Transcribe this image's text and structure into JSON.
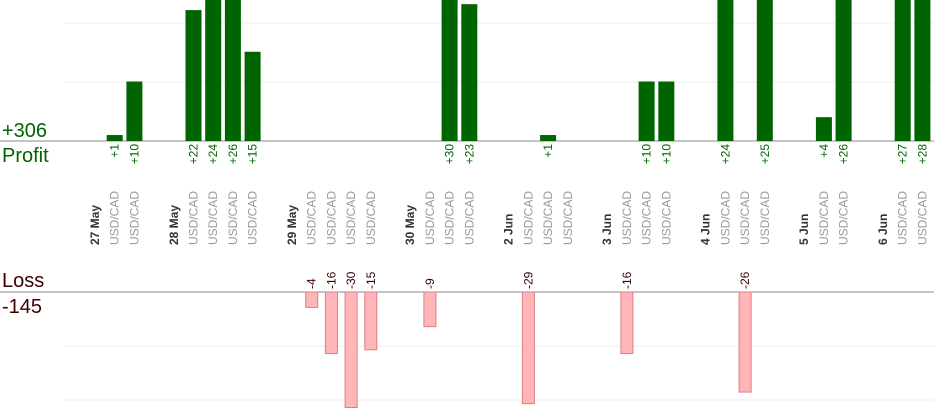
{
  "profit_total": "+306",
  "profit_label": "Profit",
  "loss_label": "Loss",
  "loss_total": "-145",
  "colors": {
    "profit_bar": "#006400",
    "profit_text": "#006400",
    "loss_bar_fill": "#ffb6b9",
    "loss_bar_stroke": "#e07c82",
    "loss_text": "#3a0000",
    "grid": "#eeeeee",
    "baseline": "#888888"
  },
  "chart_data": {
    "type": "bar",
    "instrument": "USD/CAD",
    "slots": [
      {
        "t": "day",
        "label": "27 May"
      },
      {
        "t": "bar",
        "v": 1
      },
      {
        "t": "bar",
        "v": 10
      },
      {
        "t": "gap"
      },
      {
        "t": "day",
        "label": "28 May"
      },
      {
        "t": "bar",
        "v": 22
      },
      {
        "t": "bar",
        "v": 24
      },
      {
        "t": "bar",
        "v": 26
      },
      {
        "t": "bar",
        "v": 15
      },
      {
        "t": "gap"
      },
      {
        "t": "day",
        "label": "29 May"
      },
      {
        "t": "bar",
        "v": -4
      },
      {
        "t": "bar",
        "v": -16
      },
      {
        "t": "bar",
        "v": -30
      },
      {
        "t": "bar",
        "v": -15
      },
      {
        "t": "gap"
      },
      {
        "t": "day",
        "label": "30 May"
      },
      {
        "t": "bar",
        "v": -9
      },
      {
        "t": "bar",
        "v": 30
      },
      {
        "t": "bar",
        "v": 23
      },
      {
        "t": "gap"
      },
      {
        "t": "day",
        "label": "2 Jun"
      },
      {
        "t": "bar",
        "v": -29
      },
      {
        "t": "bar",
        "v": 1
      },
      {
        "t": "bar",
        "v": null
      },
      {
        "t": "gap"
      },
      {
        "t": "day",
        "label": "3 Jun"
      },
      {
        "t": "bar",
        "v": -16
      },
      {
        "t": "bar",
        "v": 10
      },
      {
        "t": "bar",
        "v": 10
      },
      {
        "t": "gap"
      },
      {
        "t": "day",
        "label": "4 Jun"
      },
      {
        "t": "bar",
        "v": 24
      },
      {
        "t": "bar",
        "v": -26
      },
      {
        "t": "bar",
        "v": 25
      },
      {
        "t": "gap"
      },
      {
        "t": "day",
        "label": "5 Jun"
      },
      {
        "t": "bar",
        "v": 4
      },
      {
        "t": "bar",
        "v": 26
      },
      {
        "t": "gap"
      },
      {
        "t": "day",
        "label": "6 Jun"
      },
      {
        "t": "bar",
        "v": 27
      },
      {
        "t": "bar",
        "v": 28
      }
    ]
  }
}
